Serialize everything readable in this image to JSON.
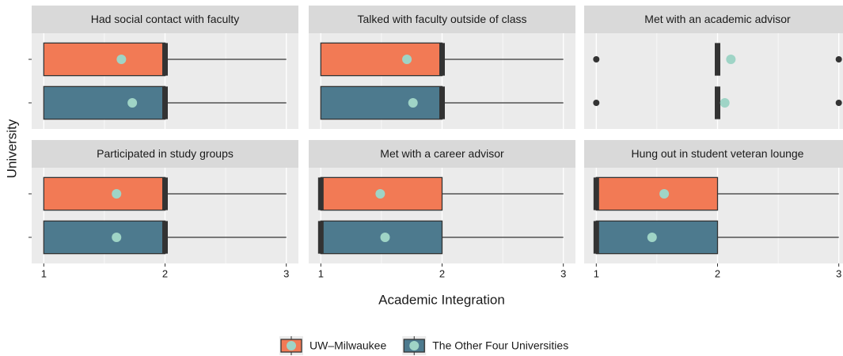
{
  "chart_data": {
    "type": "boxplot",
    "xlabel": "Academic Integration",
    "ylabel": "University",
    "xlim": [
      0.9,
      3.1
    ],
    "xticks": [
      1,
      2,
      3
    ],
    "grid": true,
    "legend": "bottom",
    "mean_color": "#9fd4c6",
    "series": [
      {
        "name": "UW–Milwaukee",
        "color": "#f27a55"
      },
      {
        "name": "The Other Four Universities",
        "color": "#4d7a8e"
      }
    ],
    "facets": [
      {
        "title": "Had social contact with faculty",
        "boxes": [
          {
            "min": 1,
            "q1": 1,
            "median": 2,
            "q3": 2,
            "max": 3,
            "mean": 1.64,
            "outliers": []
          },
          {
            "min": 1,
            "q1": 1,
            "median": 2,
            "q3": 2,
            "max": 3,
            "mean": 1.73,
            "outliers": []
          }
        ]
      },
      {
        "title": "Talked with faculty outside of class",
        "boxes": [
          {
            "min": 1,
            "q1": 1,
            "median": 2,
            "q3": 2,
            "max": 3,
            "mean": 1.71,
            "outliers": []
          },
          {
            "min": 1,
            "q1": 1,
            "median": 2,
            "q3": 2,
            "max": 3,
            "mean": 1.76,
            "outliers": []
          }
        ]
      },
      {
        "title": "Met with an academic advisor",
        "boxes": [
          {
            "min": 2,
            "q1": 2,
            "median": 2,
            "q3": 2,
            "max": 2,
            "mean": 2.11,
            "outliers": [
              1,
              3
            ]
          },
          {
            "min": 2,
            "q1": 2,
            "median": 2,
            "q3": 2,
            "max": 2,
            "mean": 2.06,
            "outliers": [
              1,
              3
            ]
          }
        ]
      },
      {
        "title": "Participated in study groups",
        "boxes": [
          {
            "min": 1,
            "q1": 1,
            "median": 2,
            "q3": 2,
            "max": 3,
            "mean": 1.6,
            "outliers": []
          },
          {
            "min": 1,
            "q1": 1,
            "median": 2,
            "q3": 2,
            "max": 3,
            "mean": 1.6,
            "outliers": []
          }
        ]
      },
      {
        "title": "Met with a career advisor",
        "boxes": [
          {
            "min": 1,
            "q1": 1,
            "median": 1,
            "q3": 2,
            "max": 3,
            "mean": 1.49,
            "outliers": []
          },
          {
            "min": 1,
            "q1": 1,
            "median": 1,
            "q3": 2,
            "max": 3,
            "mean": 1.53,
            "outliers": []
          }
        ]
      },
      {
        "title": "Hung out in student veteran lounge",
        "boxes": [
          {
            "min": 1,
            "q1": 1,
            "median": 1,
            "q3": 2,
            "max": 3,
            "mean": 1.56,
            "outliers": []
          },
          {
            "min": 1,
            "q1": 1,
            "median": 1,
            "q3": 2,
            "max": 3,
            "mean": 1.46,
            "outliers": []
          }
        ]
      }
    ]
  }
}
